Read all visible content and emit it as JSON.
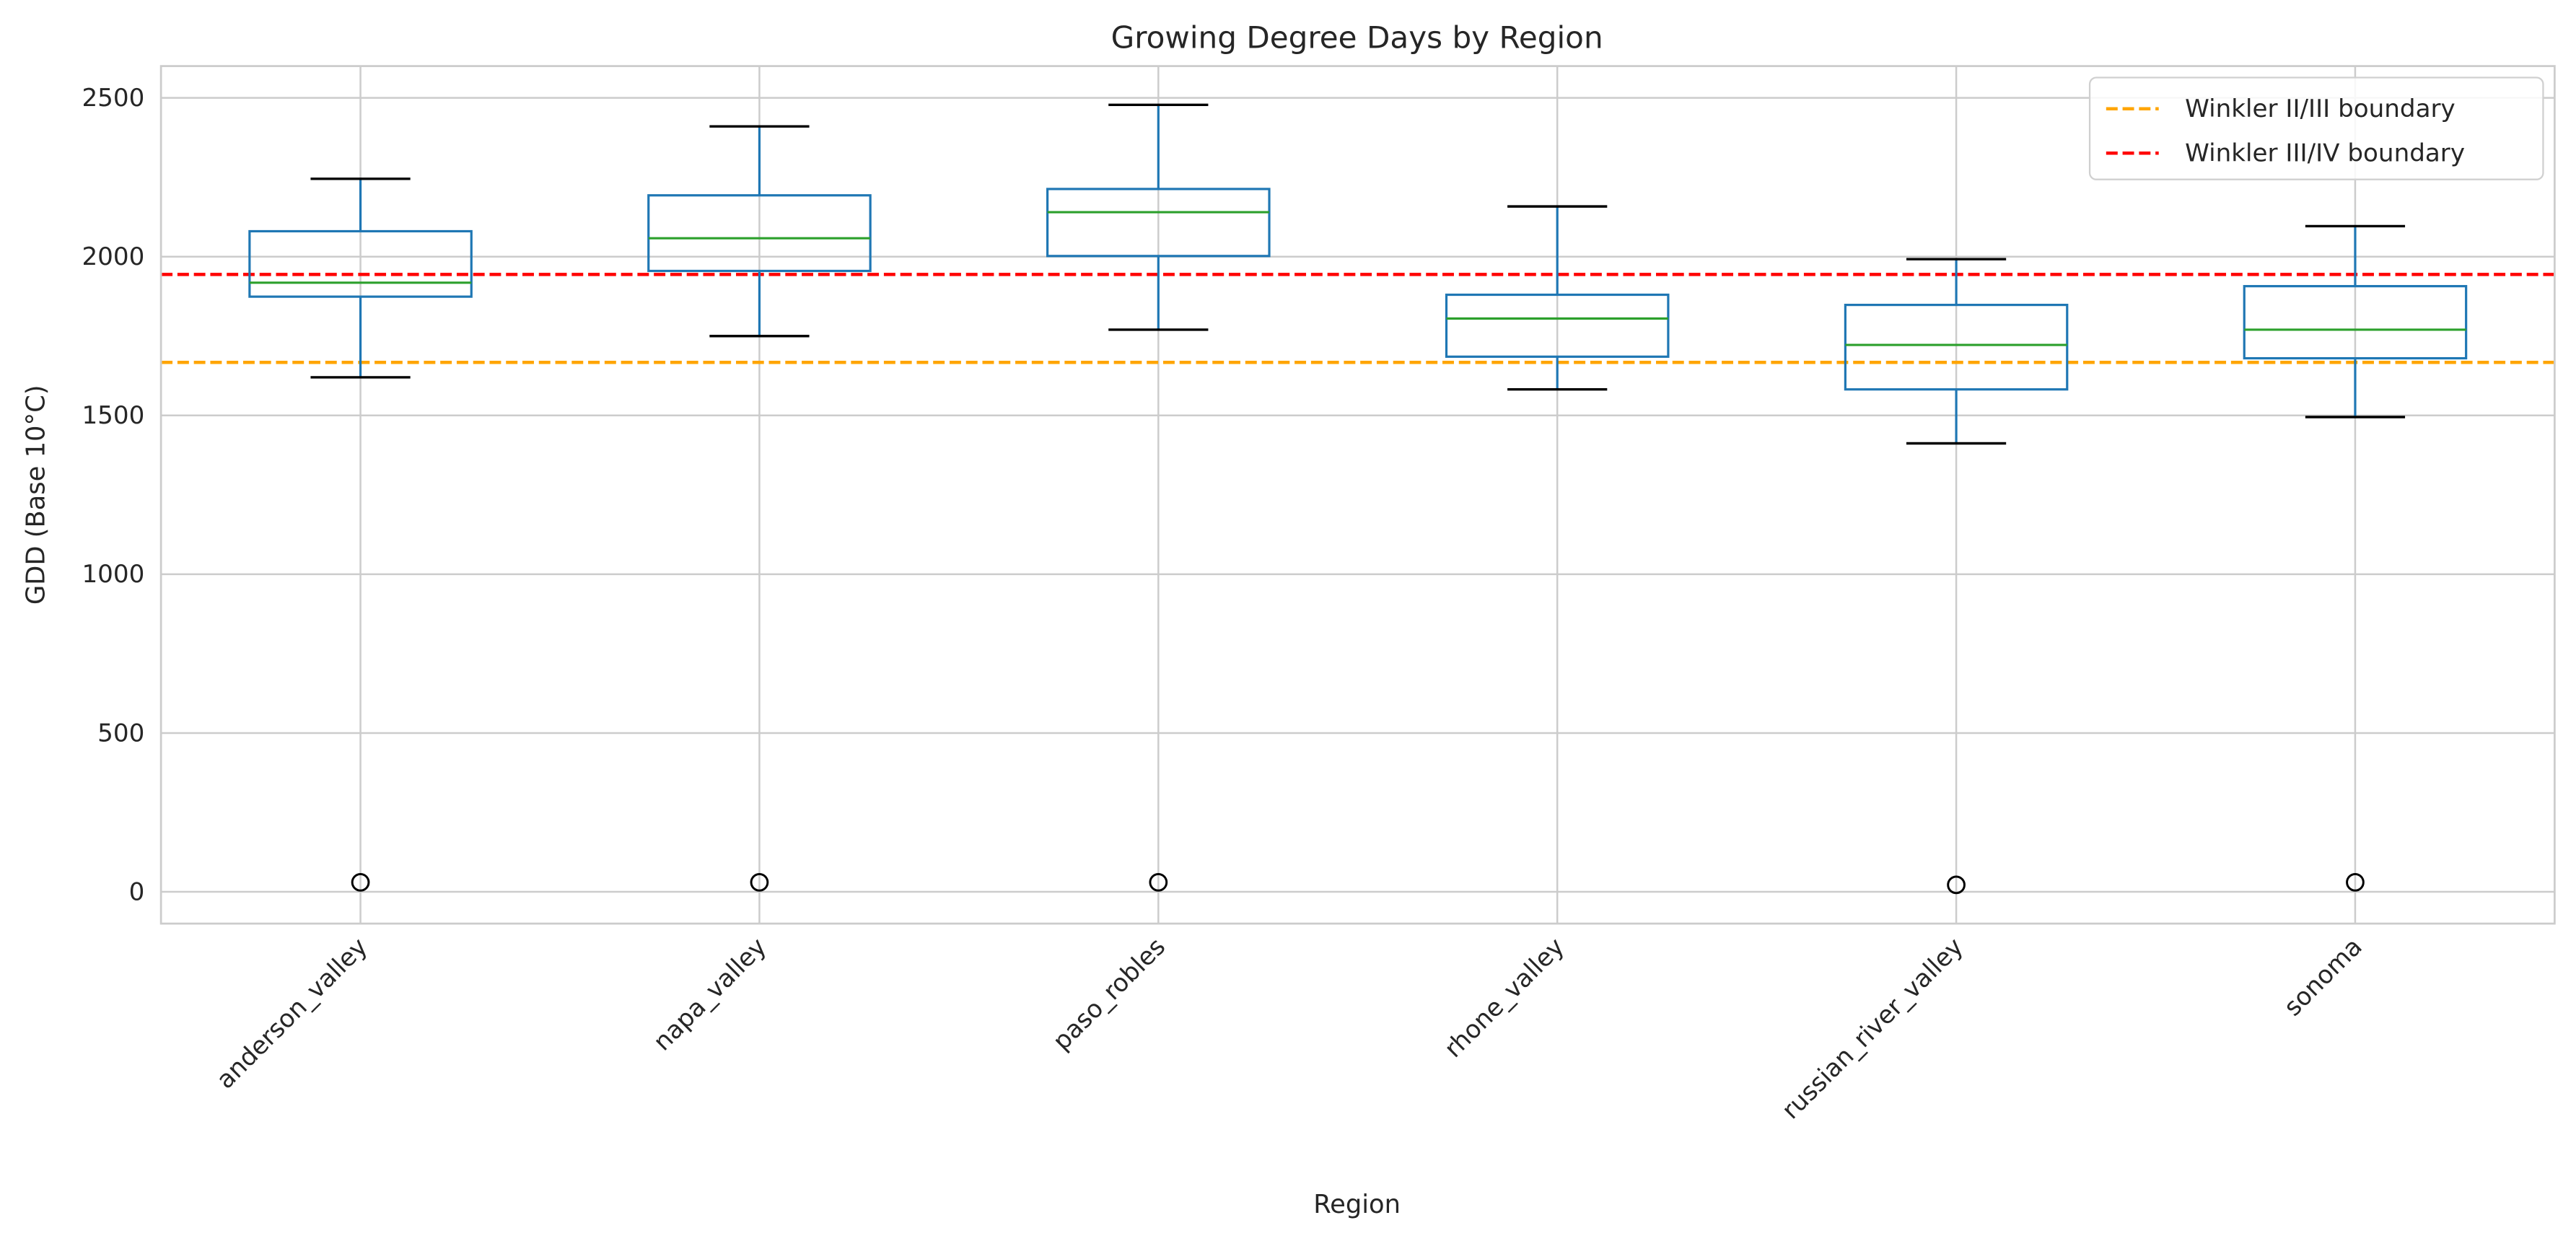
{
  "chart_data": {
    "type": "box",
    "title": "Growing Degree Days by Region",
    "xlabel": "Region",
    "ylabel": "GDD (Base 10°C)",
    "ylim": [
      -100,
      2600
    ],
    "yticks": [
      0,
      500,
      1000,
      1500,
      2000,
      2500
    ],
    "grid": true,
    "legend_position": "top-right",
    "categories": [
      "anderson_valley",
      "napa_valley",
      "paso_robles",
      "rhone_valley",
      "russian_river_valley",
      "sonoma"
    ],
    "boxes": [
      {
        "whisker_low": 1620,
        "q1": 1874,
        "median": 1918,
        "q3": 2080,
        "whisker_high": 2245,
        "outliers": [
          30
        ]
      },
      {
        "whisker_low": 1750,
        "q1": 1955,
        "median": 2058,
        "q3": 2193,
        "whisker_high": 2410,
        "outliers": [
          30
        ]
      },
      {
        "whisker_low": 1770,
        "q1": 2002,
        "median": 2140,
        "q3": 2213,
        "whisker_high": 2478,
        "outliers": [
          30
        ]
      },
      {
        "whisker_low": 1582,
        "q1": 1685,
        "median": 1805,
        "q3": 1880,
        "whisker_high": 2158,
        "outliers": []
      },
      {
        "whisker_low": 1412,
        "q1": 1582,
        "median": 1722,
        "q3": 1848,
        "whisker_high": 1992,
        "outliers": [
          22
        ]
      },
      {
        "whisker_low": 1495,
        "q1": 1680,
        "median": 1770,
        "q3": 1907,
        "whisker_high": 2096,
        "outliers": [
          30
        ]
      }
    ],
    "reference_lines": [
      {
        "name": "Winkler II/III boundary",
        "y": 1667,
        "color": "#ffa500",
        "style": "dashed"
      },
      {
        "name": "Winkler III/IV boundary",
        "y": 1944,
        "color": "#ff0000",
        "style": "dashed"
      }
    ],
    "colors": {
      "box": "#1f77b4",
      "median": "#2ca02c",
      "caps": "#000000",
      "grid": "#cccccc"
    }
  }
}
